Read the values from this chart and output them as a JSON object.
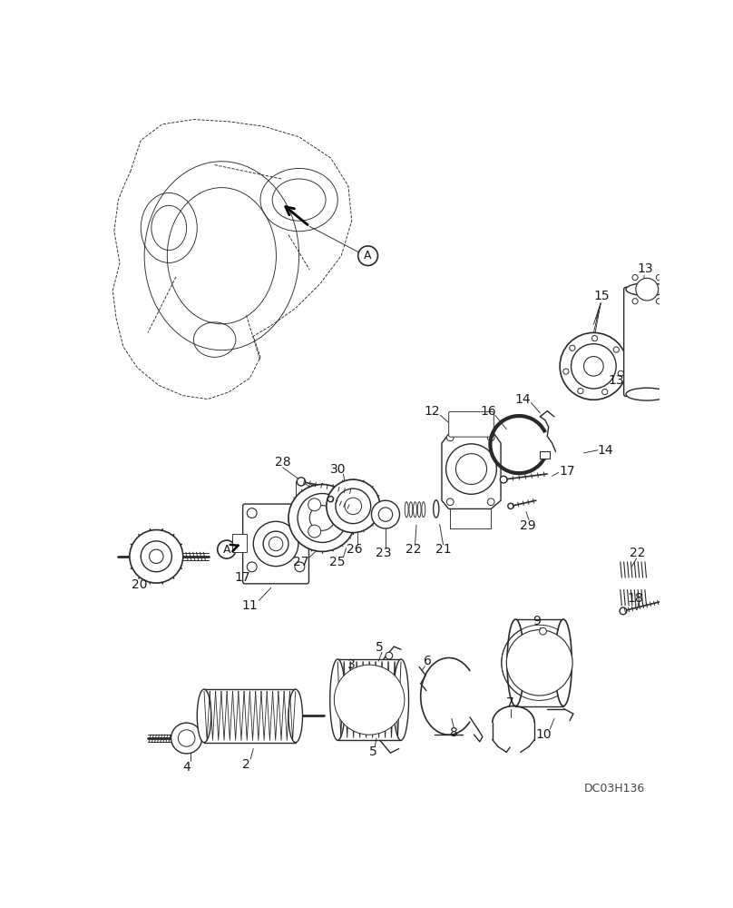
{
  "background_color": "#ffffff",
  "image_code": "DC03H136",
  "line_color": "#2a2a2a",
  "text_color": "#1a1a1a",
  "font_size_labels": 10,
  "font_size_code": 9
}
